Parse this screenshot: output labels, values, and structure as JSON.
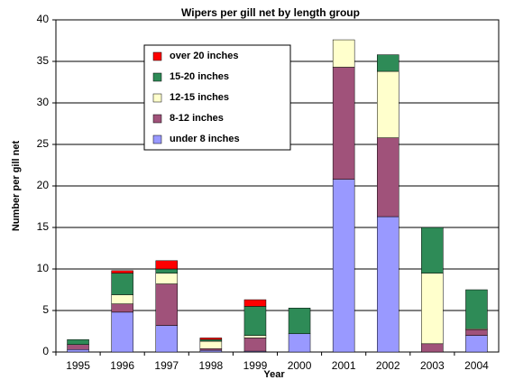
{
  "chart_data": {
    "type": "stacked_bar",
    "title": "Wipers per gill net by length group",
    "xlabel": "Year",
    "ylabel": "Number per gill net",
    "categories": [
      "1995",
      "1996",
      "1997",
      "1998",
      "1999",
      "2000",
      "2001",
      "2002",
      "2003",
      "2004"
    ],
    "series": [
      {
        "name": "under 8 inches",
        "color": "#9999ff",
        "values": [
          0.3,
          4.8,
          3.2,
          0.2,
          0.1,
          2.2,
          20.8,
          16.3,
          0,
          2.0
        ]
      },
      {
        "name": "8-12 inches",
        "color": "#a0527a",
        "values": [
          0.6,
          1.0,
          5.0,
          0.2,
          1.6,
          0,
          13.5,
          9.5,
          1.0,
          0.7
        ]
      },
      {
        "name": "12-15 inches",
        "color": "#ffffcc",
        "values": [
          0,
          1.1,
          1.3,
          0.9,
          0.3,
          0,
          3.3,
          8.0,
          8.5,
          0.1
        ]
      },
      {
        "name": "15-20 inches",
        "color": "#2e8b57",
        "values": [
          0.6,
          2.6,
          0.5,
          0.2,
          3.5,
          3.1,
          0,
          2.0,
          5.5,
          4.7
        ]
      },
      {
        "name": "over 20 inches",
        "color": "#ff0000",
        "values": [
          0,
          0.3,
          1.0,
          0.2,
          0.8,
          0,
          0,
          0,
          0,
          0
        ]
      }
    ],
    "ylim": [
      0,
      40
    ],
    "yticks": [
      0,
      5,
      10,
      15,
      20,
      25,
      30,
      35,
      40
    ],
    "grid": true,
    "legend": "upper left"
  }
}
